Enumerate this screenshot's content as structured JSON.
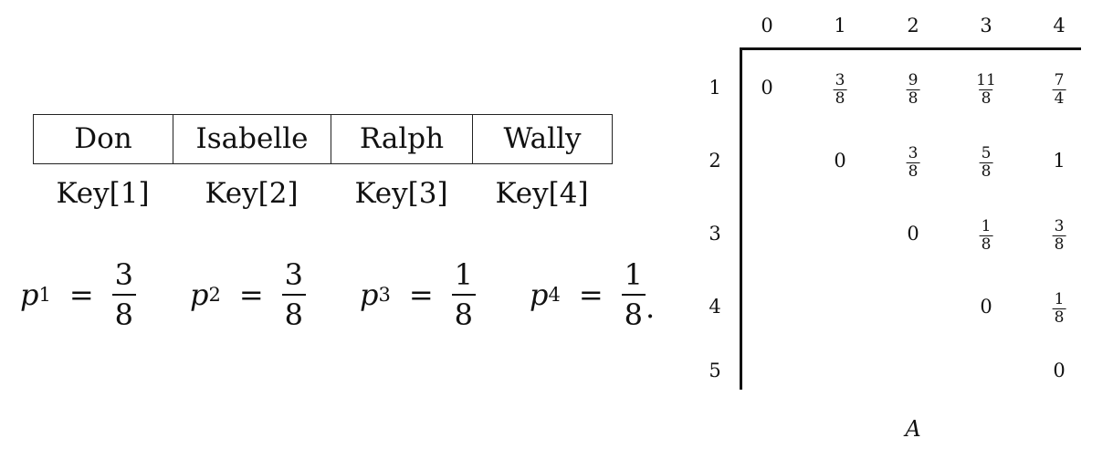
{
  "keys": [
    {
      "name": "Don",
      "key_label": "Key[1]"
    },
    {
      "name": "Isabelle",
      "key_label": "Key[2]"
    },
    {
      "name": "Ralph",
      "key_label": "Key[3]"
    },
    {
      "name": "Wally",
      "key_label": "Key[4]"
    }
  ],
  "probabilities": [
    {
      "var": "p",
      "sub": "1",
      "eq": "=",
      "num": "3",
      "den": "8",
      "trail": ""
    },
    {
      "var": "p",
      "sub": "2",
      "eq": "=",
      "num": "3",
      "den": "8",
      "trail": ""
    },
    {
      "var": "p",
      "sub": "3",
      "eq": "=",
      "num": "1",
      "den": "8",
      "trail": ""
    },
    {
      "var": "p",
      "sub": "4",
      "eq": "=",
      "num": "1",
      "den": "8",
      "trail": "."
    }
  ],
  "matrix": {
    "column_headers": [
      "0",
      "1",
      "2",
      "3",
      "4"
    ],
    "row_headers": [
      "1",
      "2",
      "3",
      "4",
      "5"
    ],
    "cells": [
      {
        "row": 1,
        "col": 0,
        "value": "0"
      },
      {
        "row": 1,
        "col": 1,
        "num": "3",
        "den": "8"
      },
      {
        "row": 1,
        "col": 2,
        "num": "9",
        "den": "8"
      },
      {
        "row": 1,
        "col": 3,
        "num": "11",
        "den": "8"
      },
      {
        "row": 1,
        "col": 4,
        "num": "7",
        "den": "4"
      },
      {
        "row": 2,
        "col": 1,
        "value": "0"
      },
      {
        "row": 2,
        "col": 2,
        "num": "3",
        "den": "8"
      },
      {
        "row": 2,
        "col": 3,
        "num": "5",
        "den": "8"
      },
      {
        "row": 2,
        "col": 4,
        "value": "1"
      },
      {
        "row": 3,
        "col": 2,
        "value": "0"
      },
      {
        "row": 3,
        "col": 3,
        "num": "1",
        "den": "8"
      },
      {
        "row": 3,
        "col": 4,
        "num": "3",
        "den": "8"
      },
      {
        "row": 4,
        "col": 3,
        "value": "0"
      },
      {
        "row": 4,
        "col": 4,
        "num": "1",
        "den": "8"
      },
      {
        "row": 5,
        "col": 4,
        "value": "0"
      }
    ],
    "caption": "A"
  }
}
